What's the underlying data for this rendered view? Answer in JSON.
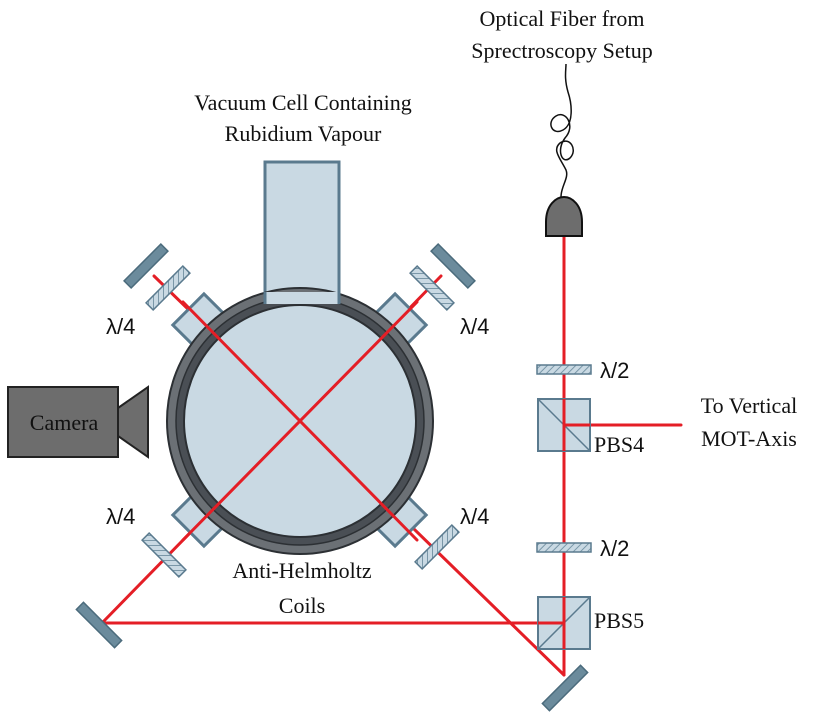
{
  "labels": {
    "fiber_line1": "Optical Fiber from",
    "fiber_line2": "Sprectroscopy Setup",
    "cell_line1": "Vacuum Cell Containing",
    "cell_line2": "Rubidium Vapour",
    "camera": "Camera",
    "coils_line1": "Anti-Helmholtz",
    "coils_line2": "Coils",
    "vertical_line1": "To Vertical",
    "vertical_line2": "MOT-Axis",
    "pbs4": "PBS4",
    "pbs5": "PBS5",
    "half_wave_top": "λ/2",
    "half_wave_bottom": "λ/2",
    "quarter_wave_top_left": "λ/4",
    "quarter_wave_top_right": "λ/4",
    "quarter_wave_bottom_left": "λ/4",
    "quarter_wave_bottom_right": "λ/4"
  },
  "colors": {
    "beam": "#e41e26",
    "optic_fill": "#c9d9e3",
    "optic_stroke": "#5a7a8e",
    "mirror": "#6b8b9c",
    "coil": "#4a4f55",
    "camera": "#6d6d6d",
    "fiber_connector": "#555555"
  }
}
